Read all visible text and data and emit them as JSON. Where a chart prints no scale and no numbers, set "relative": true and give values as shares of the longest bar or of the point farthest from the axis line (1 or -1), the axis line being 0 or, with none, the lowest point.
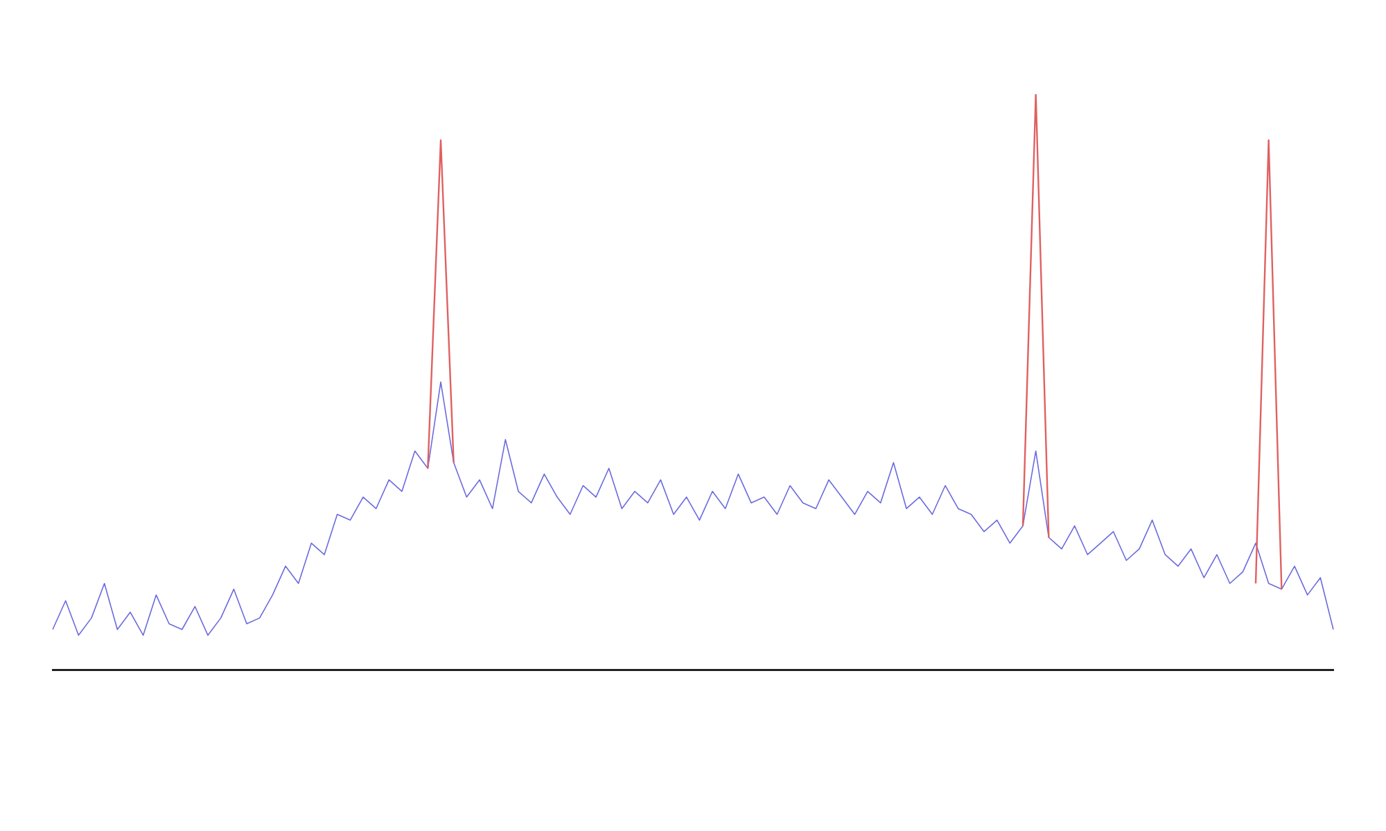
{
  "chart_data": {
    "type": "line",
    "relative": true,
    "grid": false,
    "legend": false,
    "marker": "none",
    "categories": [
      null,
      null,
      null,
      null,
      null,
      null,
      null,
      null,
      null,
      null,
      null,
      null,
      null,
      null,
      null,
      null,
      null,
      null,
      null,
      null,
      null,
      null,
      null,
      null,
      null,
      null,
      null,
      null,
      null,
      null,
      null,
      null,
      null,
      null,
      null,
      null,
      null,
      null,
      null,
      null,
      null,
      null,
      null,
      null,
      null,
      null,
      null,
      null,
      null,
      null,
      null,
      null,
      null,
      null,
      null,
      null,
      null,
      null,
      null,
      null,
      null,
      null,
      null,
      null,
      null,
      null,
      null,
      null,
      null,
      null,
      null,
      null,
      null,
      null,
      null,
      null,
      null,
      null,
      null,
      null,
      null,
      null,
      null,
      null,
      null,
      null,
      null,
      null,
      null,
      null,
      null,
      null,
      null,
      null,
      null,
      null,
      null,
      null,
      null,
      null
    ],
    "series": [
      {
        "color": "#6a6ae0",
        "values": [
          0.07,
          0.12,
          0.06,
          0.09,
          0.15,
          0.07,
          0.1,
          0.06,
          0.13,
          0.08,
          0.07,
          0.11,
          0.06,
          0.09,
          0.14,
          0.08,
          0.09,
          0.13,
          0.18,
          0.15,
          0.22,
          0.2,
          0.27,
          0.26,
          0.3,
          0.28,
          0.33,
          0.31,
          0.38,
          0.35,
          0.5,
          0.36,
          0.3,
          0.33,
          0.28,
          0.4,
          0.31,
          0.29,
          0.34,
          0.3,
          0.27,
          0.32,
          0.3,
          0.35,
          0.28,
          0.31,
          0.29,
          0.33,
          0.27,
          0.3,
          0.26,
          0.31,
          0.28,
          0.34,
          0.29,
          0.3,
          0.27,
          0.32,
          0.29,
          0.28,
          0.33,
          0.3,
          0.27,
          0.31,
          0.29,
          0.36,
          0.28,
          0.3,
          0.27,
          0.32,
          0.28,
          0.27,
          0.24,
          0.26,
          0.22,
          0.25,
          0.38,
          0.23,
          0.21,
          0.25,
          0.2,
          0.22,
          0.24,
          0.19,
          0.21,
          0.26,
          0.2,
          0.18,
          0.21,
          0.16,
          0.2,
          0.15,
          0.17,
          0.22,
          0.15,
          0.14,
          0.18,
          0.13,
          0.16,
          0.07
        ]
      },
      {
        "color": "#e06060",
        "values": [
          null,
          null,
          null,
          null,
          null,
          null,
          null,
          null,
          null,
          null,
          null,
          null,
          null,
          null,
          null,
          null,
          null,
          null,
          null,
          null,
          null,
          null,
          null,
          null,
          null,
          null,
          null,
          null,
          null,
          0.35,
          0.92,
          0.36,
          null,
          null,
          null,
          null,
          null,
          null,
          null,
          null,
          null,
          null,
          null,
          null,
          null,
          null,
          null,
          null,
          null,
          null,
          null,
          null,
          null,
          null,
          null,
          null,
          null,
          null,
          null,
          null,
          null,
          null,
          null,
          null,
          null,
          null,
          null,
          null,
          null,
          null,
          null,
          null,
          null,
          null,
          null,
          0.25,
          1.0,
          0.23,
          null,
          null,
          null,
          null,
          null,
          null,
          null,
          null,
          null,
          null,
          null,
          null,
          null,
          null,
          null,
          0.15,
          0.92,
          0.14,
          null,
          null,
          null,
          null
        ]
      }
    ]
  }
}
